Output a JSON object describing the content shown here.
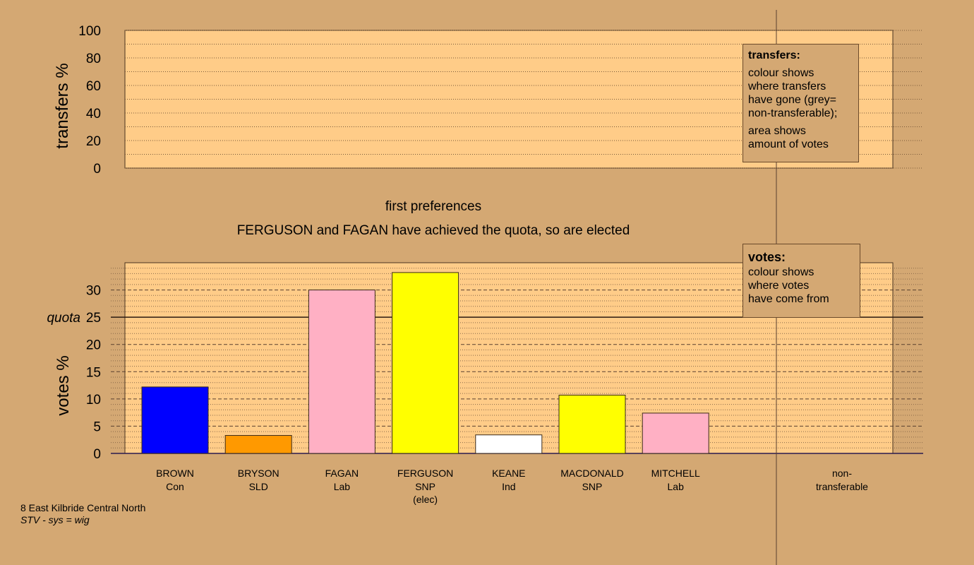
{
  "chart_data": [
    {
      "type": "area",
      "ylabel": "transfers %",
      "ylim": [
        0,
        100
      ],
      "yticks": [
        0,
        20,
        40,
        60,
        80,
        100
      ],
      "grid": true,
      "values": []
    },
    {
      "type": "bar",
      "title": "first preferences",
      "subtitle": "FERGUSON and FAGAN have achieved the quota, so are elected",
      "ylabel": "votes %",
      "ylim": [
        0,
        35
      ],
      "yticks": [
        0,
        5,
        10,
        15,
        20,
        25,
        30
      ],
      "quota": 25,
      "quota_label": "quota",
      "grid": true,
      "categories": [
        {
          "name": "BROWN",
          "party": "Con",
          "note": "",
          "value": 12.2,
          "color": "#0000ff"
        },
        {
          "name": "BRYSON",
          "party": "SLD",
          "note": "",
          "value": 3.3,
          "color": "#ff9900"
        },
        {
          "name": "FAGAN",
          "party": "Lab",
          "note": "",
          "value": 30.0,
          "color": "#ffb0c4"
        },
        {
          "name": "FERGUSON",
          "party": "SNP",
          "note": "(elec)",
          "value": 33.2,
          "color": "#ffff00"
        },
        {
          "name": "KEANE",
          "party": "Ind",
          "note": "",
          "value": 3.4,
          "color": "#ffffff"
        },
        {
          "name": "MACDONALD",
          "party": "SNP",
          "note": "",
          "value": 10.7,
          "color": "#ffff00"
        },
        {
          "name": "MITCHELL",
          "party": "Lab",
          "note": "",
          "value": 7.4,
          "color": "#ffb0c4"
        }
      ],
      "nontransferable": {
        "line1": "non-",
        "line2": "transferable"
      }
    }
  ],
  "legend_transfers": {
    "title": "transfers:",
    "lines": [
      "colour shows",
      "where transfers",
      "have gone (grey=",
      "non-transferable);"
    ],
    "lines2": [
      "area shows",
      "amount of votes"
    ]
  },
  "legend_votes": {
    "title": "votes:",
    "lines": [
      "colour shows",
      "where votes",
      "have come from"
    ]
  },
  "footer": {
    "line1": "8 East Kilbride Central North",
    "line2": "STV - sys = wig"
  },
  "colors": {
    "background": "#d4a873",
    "plot_fill": "#ffcc88",
    "axis": "#3a2a1a"
  }
}
